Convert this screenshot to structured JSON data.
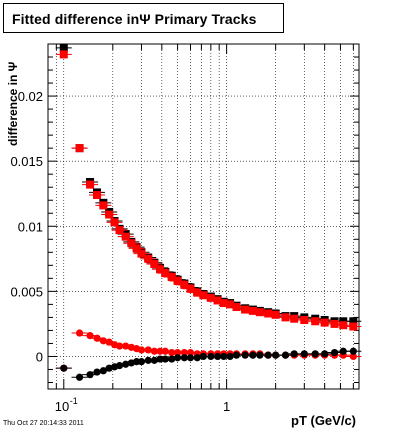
{
  "title": "Fitted difference inΨ  Primary Tracks",
  "footer": {
    "timestamp": "Thu Oct 27 20:14:33 2011"
  },
  "chart_data": {
    "type": "scatter",
    "title": "Fitted difference inΨ  Primary Tracks",
    "xlabel": "pT (GeV/c)",
    "ylabel": "difference in Ψ",
    "x_scale": "log",
    "xlim": [
      0.08,
      6.5
    ],
    "ylim": [
      -0.0025,
      0.024
    ],
    "grid": true,
    "x_tick_labels": [
      {
        "value": 0.1,
        "base": "10",
        "exp": "-1"
      },
      {
        "value": 1,
        "label": "1"
      }
    ],
    "y_ticks": [
      0,
      0.005,
      0.01,
      0.015,
      0.02
    ],
    "y_tick_labels": [
      "0",
      "0.005",
      "0.01",
      "0.015",
      "0.02"
    ],
    "series": [
      {
        "marker": "square",
        "color": "#000000",
        "x": [
          0.1,
          0.125,
          0.145,
          0.16,
          0.175,
          0.19,
          0.205,
          0.22,
          0.24,
          0.26,
          0.28,
          0.3,
          0.33,
          0.36,
          0.39,
          0.42,
          0.46,
          0.5,
          0.55,
          0.6,
          0.66,
          0.72,
          0.8,
          0.88,
          0.96,
          1.05,
          1.15,
          1.3,
          1.45,
          1.6,
          1.8,
          2.0,
          2.3,
          2.6,
          3.0,
          3.5,
          4.0,
          4.6,
          5.2,
          6.0
        ],
        "y": [
          0.0237,
          0.016,
          0.0134,
          0.0126,
          0.0118,
          0.0111,
          0.0104,
          0.0098,
          0.0094,
          0.0088,
          0.0084,
          0.008,
          0.0076,
          0.0072,
          0.0068,
          0.0065,
          0.0062,
          0.0059,
          0.0056,
          0.0053,
          0.005,
          0.0048,
          0.0046,
          0.0044,
          0.0042,
          0.0041,
          0.0039,
          0.0037,
          0.0036,
          0.0035,
          0.0034,
          0.0033,
          0.0031,
          0.0031,
          0.003,
          0.0029,
          0.0028,
          0.0027,
          0.0027,
          0.0027
        ]
      },
      {
        "marker": "square",
        "color": "#ff0000",
        "x": [
          0.1,
          0.125,
          0.145,
          0.16,
          0.175,
          0.19,
          0.205,
          0.22,
          0.24,
          0.26,
          0.28,
          0.3,
          0.33,
          0.36,
          0.39,
          0.42,
          0.46,
          0.5,
          0.55,
          0.6,
          0.66,
          0.72,
          0.8,
          0.88,
          0.96,
          1.05,
          1.15,
          1.3,
          1.45,
          1.6,
          1.8,
          2.0,
          2.3,
          2.6,
          3.0,
          3.5,
          4.0,
          4.6,
          5.2,
          6.0
        ],
        "y": [
          0.0232,
          0.016,
          0.0132,
          0.0124,
          0.0116,
          0.0109,
          0.0103,
          0.0097,
          0.0092,
          0.0087,
          0.0083,
          0.0079,
          0.0075,
          0.0071,
          0.0067,
          0.0064,
          0.0061,
          0.0058,
          0.0055,
          0.0052,
          0.0049,
          0.0047,
          0.0045,
          0.0043,
          0.0041,
          0.004,
          0.0038,
          0.0036,
          0.0035,
          0.0034,
          0.0033,
          0.0032,
          0.003,
          0.0029,
          0.0028,
          0.0027,
          0.0026,
          0.0025,
          0.0024,
          0.0023
        ]
      },
      {
        "marker": "circle",
        "color": "#ff0000",
        "x": [
          0.1,
          0.125,
          0.145,
          0.16,
          0.175,
          0.19,
          0.205,
          0.22,
          0.24,
          0.26,
          0.28,
          0.3,
          0.33,
          0.36,
          0.39,
          0.42,
          0.46,
          0.5,
          0.55,
          0.6,
          0.66,
          0.72,
          0.8,
          0.88,
          0.96,
          1.05,
          1.15,
          1.3,
          1.45,
          1.6,
          1.8,
          2.0,
          2.3,
          2.6,
          3.0,
          3.5,
          4.0,
          4.6,
          5.2,
          6.0
        ],
        "y": [
          -0.0009,
          0.0018,
          0.0016,
          0.0014,
          0.0012,
          0.0011,
          0.0009,
          0.0008,
          0.0008,
          0.0007,
          0.0006,
          0.0005,
          0.0005,
          0.0004,
          0.0004,
          0.0004,
          0.0003,
          0.0003,
          0.0003,
          0.0003,
          0.0002,
          0.0002,
          0.0002,
          0.0002,
          0.0002,
          0.0002,
          0.0002,
          0.0002,
          0.0002,
          0.0002,
          0.0001,
          0.0001,
          0.0001,
          0.0001,
          0.0001,
          0.0001,
          0.0001,
          0.0001,
          0.0001,
          0.0
        ]
      },
      {
        "marker": "circle",
        "color": "#000000",
        "x": [
          0.1,
          0.125,
          0.145,
          0.16,
          0.175,
          0.19,
          0.205,
          0.22,
          0.24,
          0.26,
          0.28,
          0.3,
          0.33,
          0.36,
          0.39,
          0.42,
          0.46,
          0.5,
          0.55,
          0.6,
          0.66,
          0.72,
          0.8,
          0.88,
          0.96,
          1.05,
          1.15,
          1.3,
          1.45,
          1.6,
          1.8,
          2.0,
          2.3,
          2.6,
          3.0,
          3.5,
          4.0,
          4.6,
          5.2,
          6.0
        ],
        "y": [
          -0.0009,
          -0.0016,
          -0.0014,
          -0.0012,
          -0.0011,
          -0.0009,
          -0.0008,
          -0.0007,
          -0.0006,
          -0.0005,
          -0.0004,
          -0.0004,
          -0.0003,
          -0.0003,
          -0.0002,
          -0.0002,
          -0.0002,
          -0.0001,
          -0.0001,
          -0.0001,
          -0.0001,
          0.0,
          0.0,
          0.0,
          0.0,
          0.0,
          0.0001,
          0.0001,
          0.0001,
          0.0001,
          0.0001,
          0.0001,
          0.0001,
          0.0002,
          0.0002,
          0.0002,
          0.0002,
          0.0003,
          0.0004,
          0.0004
        ]
      }
    ]
  }
}
